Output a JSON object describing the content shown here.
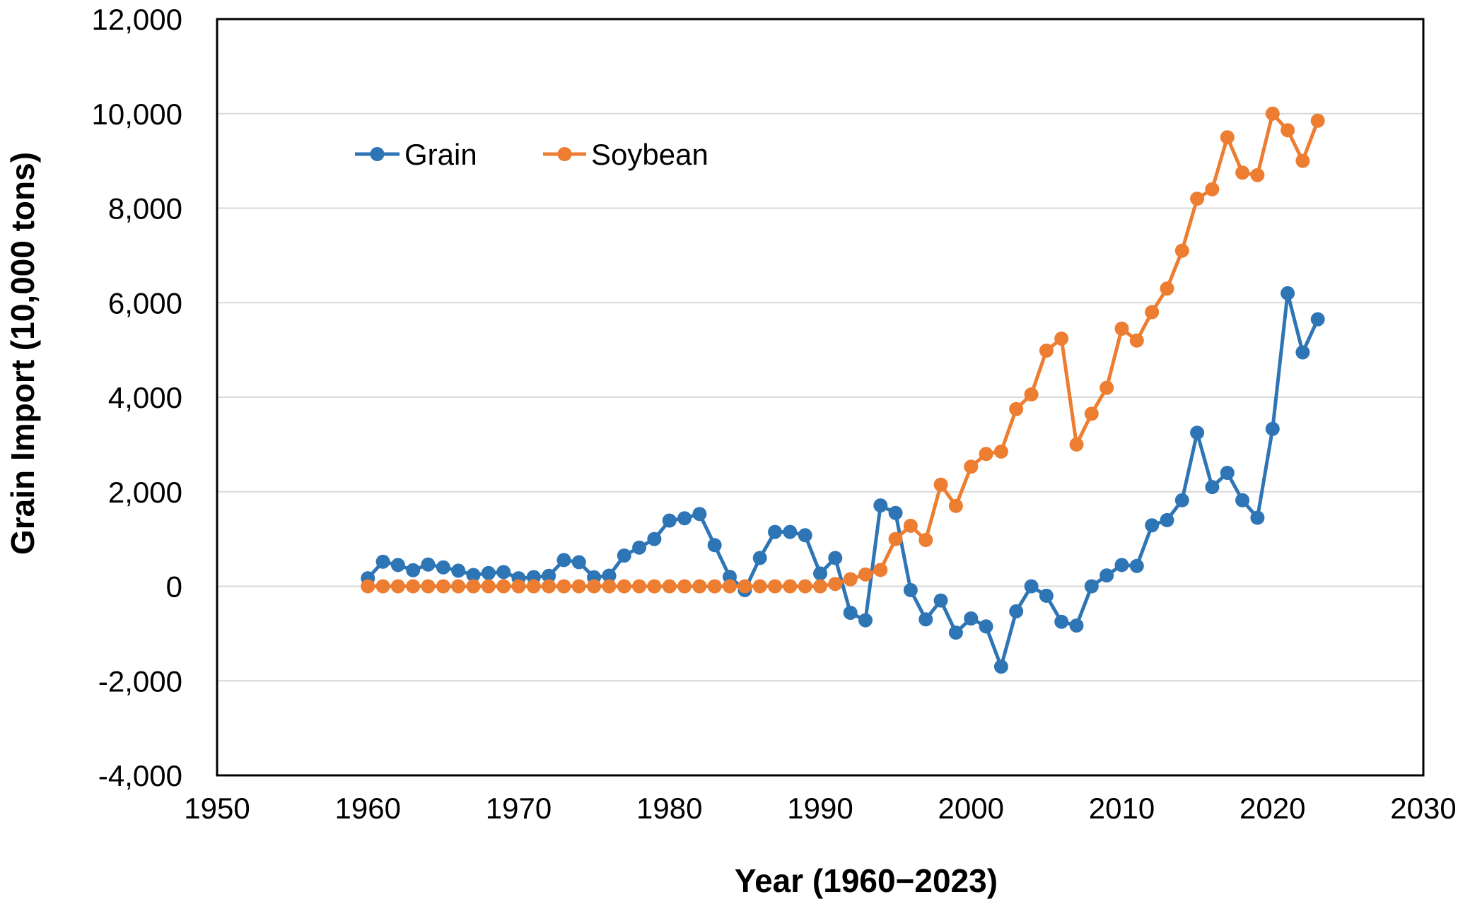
{
  "figure": {
    "background": "#ffffff",
    "plot_border_color": "#000000"
  },
  "chart_data": {
    "type": "line",
    "title": "",
    "xlabel": "Year (1960−2023)",
    "ylabel": "Grain Import (10,000 tons)",
    "xlim": [
      1950,
      2030
    ],
    "ylim": [
      -4000,
      12000
    ],
    "grid": "horizontal",
    "gridline_color": "#d9d9d9",
    "legend_position": "top-left-inside",
    "x_ticks": [
      1950,
      1960,
      1970,
      1980,
      1990,
      2000,
      2010,
      2020,
      2030
    ],
    "x_tick_labels": [
      "1950",
      "1960",
      "1970",
      "1980",
      "1990",
      "2000",
      "2010",
      "2020",
      "2030"
    ],
    "y_ticks": [
      -4000,
      -2000,
      0,
      2000,
      4000,
      6000,
      8000,
      10000,
      12000
    ],
    "y_tick_labels": [
      "-4,000",
      "-2,000",
      "0",
      "2,000",
      "4,000",
      "6,000",
      "8,000",
      "10,000",
      "12,000"
    ],
    "x": [
      1960,
      1961,
      1962,
      1963,
      1964,
      1965,
      1966,
      1967,
      1968,
      1969,
      1970,
      1971,
      1972,
      1973,
      1974,
      1975,
      1976,
      1977,
      1978,
      1979,
      1980,
      1981,
      1982,
      1983,
      1984,
      1985,
      1986,
      1987,
      1988,
      1989,
      1990,
      1991,
      1992,
      1993,
      1994,
      1995,
      1996,
      1997,
      1998,
      1999,
      2000,
      2001,
      2002,
      2003,
      2004,
      2005,
      2006,
      2007,
      2008,
      2009,
      2010,
      2011,
      2012,
      2013,
      2014,
      2015,
      2016,
      2017,
      2018,
      2019,
      2020,
      2021,
      2022,
      2023
    ],
    "series": [
      {
        "name": "Grain",
        "color": "#2E75B6",
        "values": [
          170,
          520,
          450,
          340,
          460,
          400,
          330,
          240,
          280,
          300,
          170,
          195,
          220,
          555,
          510,
          190,
          225,
          650,
          820,
          1000,
          1390,
          1440,
          1530,
          870,
          200,
          -80,
          600,
          1150,
          1150,
          1080,
          270,
          600,
          -560,
          -720,
          1710,
          1550,
          -80,
          -700,
          -300,
          -980,
          -680,
          -850,
          -1700,
          -530,
          0,
          -200,
          -750,
          -830,
          0,
          230,
          450,
          430,
          1290,
          1400,
          1820,
          3250,
          2100,
          2400,
          1820,
          1450,
          3330,
          6200,
          4950,
          5650
        ]
      },
      {
        "name": "Soybean",
        "color": "#ED7D31",
        "values": [
          0,
          0,
          0,
          0,
          0,
          0,
          0,
          0,
          0,
          0,
          0,
          0,
          0,
          0,
          0,
          0,
          0,
          0,
          0,
          0,
          0,
          0,
          0,
          0,
          0,
          0,
          0,
          0,
          0,
          0,
          0,
          50,
          150,
          250,
          345,
          1000,
          1280,
          980,
          2150,
          1700,
          2530,
          2800,
          2850,
          3750,
          4060,
          4985,
          5240,
          3000,
          3650,
          4200,
          5450,
          5200,
          5800,
          6300,
          7100,
          8200,
          8400,
          9500,
          8750,
          8700,
          10000,
          9650,
          9000,
          9850
        ]
      }
    ]
  }
}
